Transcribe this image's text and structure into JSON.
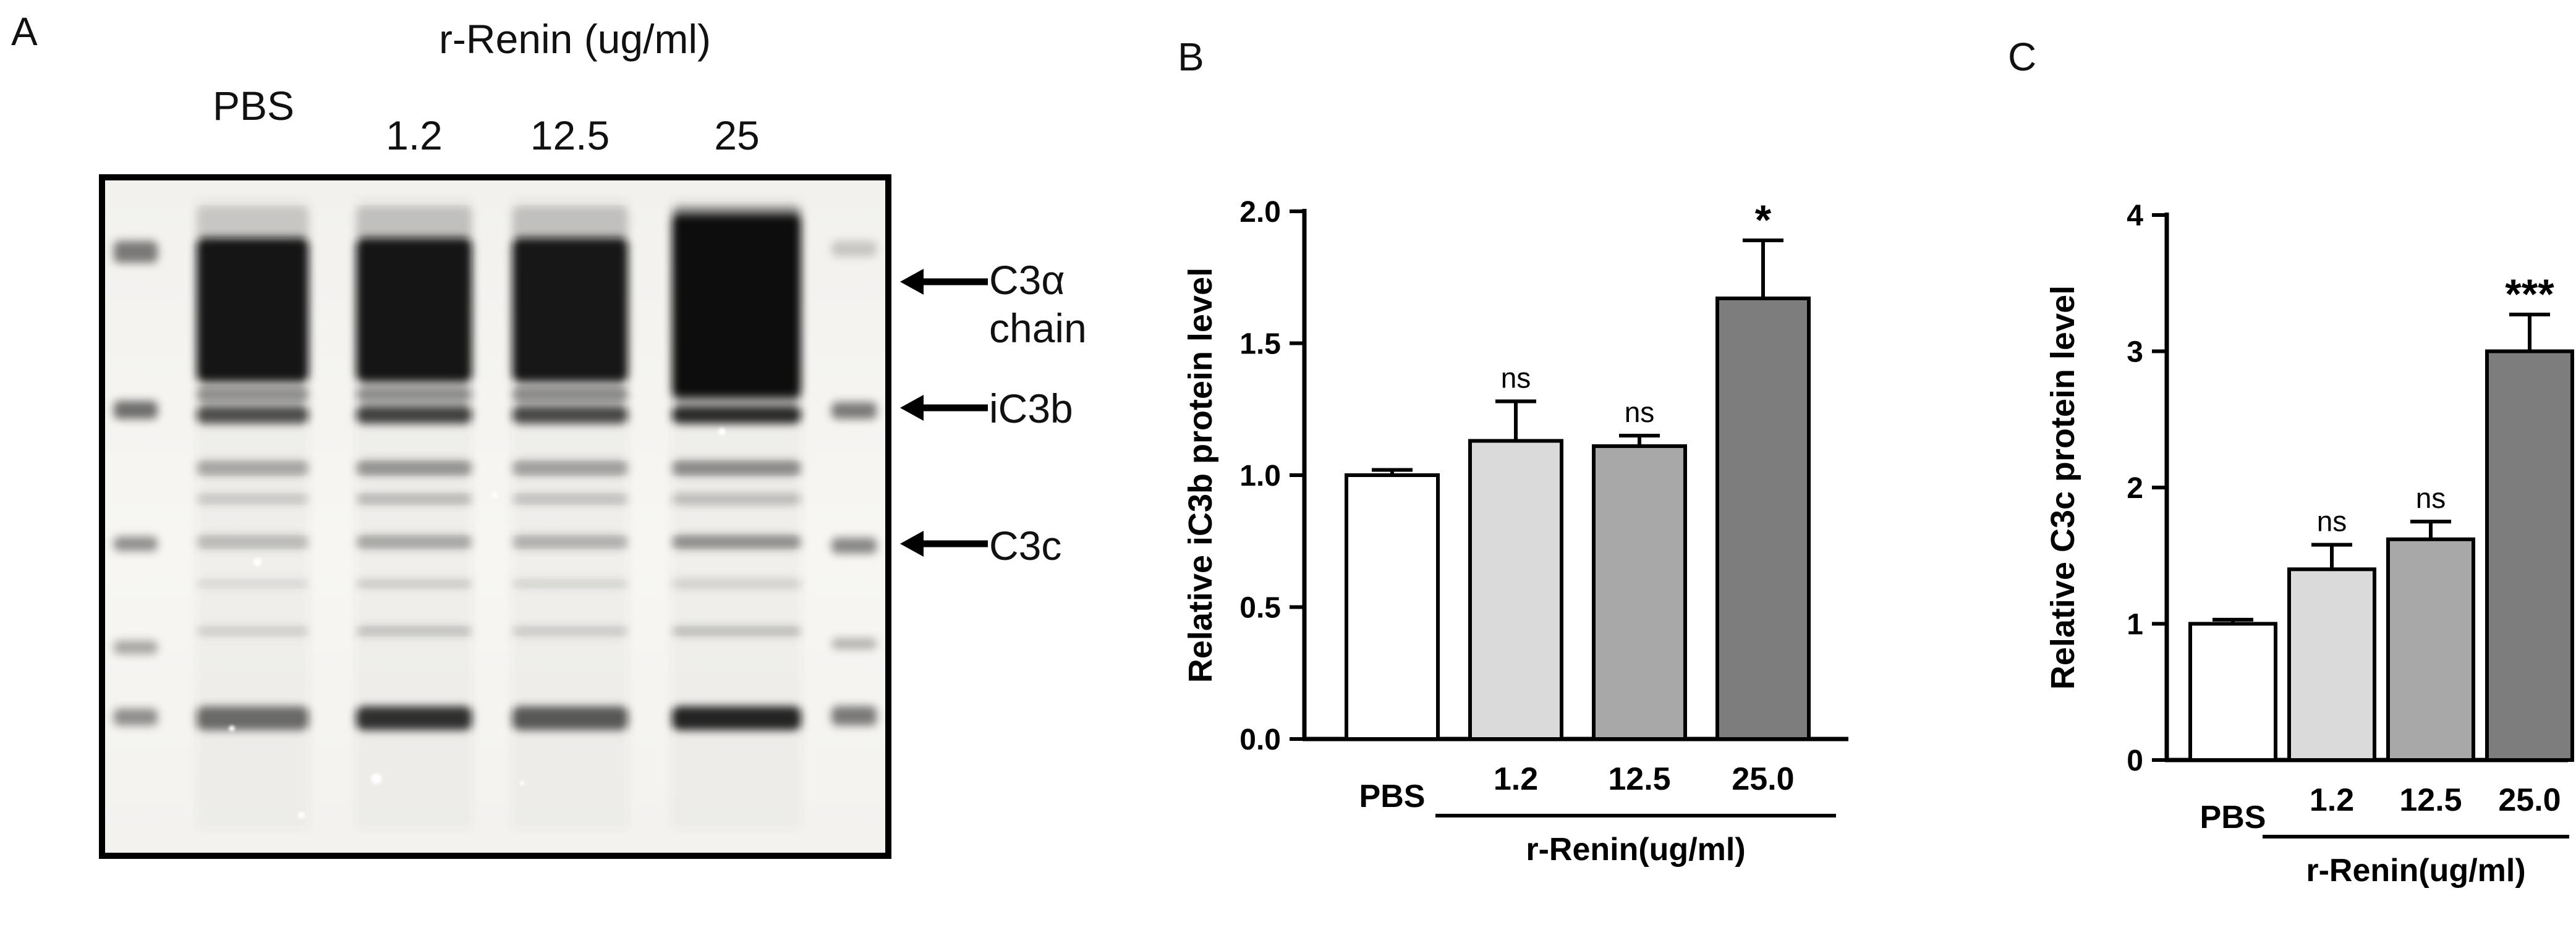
{
  "panels": {
    "A": {
      "label": "A",
      "header": "r-Renin (ug/ml)",
      "lanes": [
        "PBS",
        "1.2",
        "12.5",
        "25"
      ],
      "bands": [
        "C3α\nchain",
        "iC3b",
        "C3c"
      ]
    },
    "B": {
      "label": "B"
    },
    "C": {
      "label": "C"
    }
  },
  "chart_data": [
    {
      "panel": "B",
      "type": "bar",
      "categories": [
        "PBS",
        "1.2",
        "12.5",
        "25.0"
      ],
      "values": [
        1.0,
        1.13,
        1.11,
        1.67
      ],
      "errors": [
        0.02,
        0.15,
        0.04,
        0.22
      ],
      "annotations": [
        "",
        "ns",
        "ns",
        "*"
      ],
      "title": "",
      "xlabel": "",
      "ylabel": "Relative iC3b protein level",
      "group_label": "r-Renin(ug/ml)",
      "ylim": [
        0.0,
        2.0
      ],
      "yticks": [
        0.0,
        0.5,
        1.0,
        1.5,
        2.0
      ],
      "ytick_labels": [
        "0.0",
        "0.5",
        "1.0",
        "1.5",
        "2.0"
      ],
      "bar_colors": [
        "#ffffff",
        "#dadada",
        "#a8a8a8",
        "#7d7d7d"
      ],
      "bar_border": "#000000",
      "grid": false,
      "legend": "none"
    },
    {
      "panel": "C",
      "type": "bar",
      "categories": [
        "PBS",
        "1.2",
        "12.5",
        "25.0"
      ],
      "values": [
        1.0,
        1.4,
        1.62,
        3.0
      ],
      "errors": [
        0.03,
        0.18,
        0.13,
        0.27
      ],
      "annotations": [
        "",
        "ns",
        "ns",
        "***"
      ],
      "title": "",
      "xlabel": "",
      "ylabel": "Relative C3c protein level",
      "group_label": "r-Renin(ug/ml)",
      "ylim": [
        0,
        4
      ],
      "yticks": [
        0,
        1,
        2,
        3,
        4
      ],
      "ytick_labels": [
        "0",
        "1",
        "2",
        "3",
        "4"
      ],
      "bar_colors": [
        "#ffffff",
        "#dadada",
        "#a8a8a8",
        "#7d7d7d"
      ],
      "bar_border": "#000000",
      "grid": false,
      "legend": "none"
    }
  ]
}
